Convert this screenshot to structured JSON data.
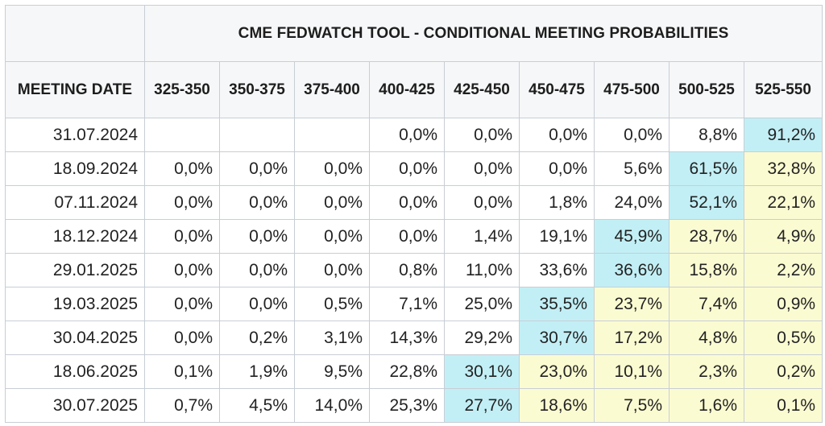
{
  "table": {
    "title": "CME FEDWATCH TOOL - CONDITIONAL MEETING PROBABILITIES",
    "date_header": "MEETING DATE",
    "colors": {
      "highlight": "#c2eff5",
      "warm": "#fbfbd2",
      "header_bg": "#f6f7f8",
      "border": "#c8ced6"
    },
    "columns": [
      "325-350",
      "350-375",
      "375-400",
      "400-425",
      "425-450",
      "450-475",
      "475-500",
      "500-525",
      "525-550"
    ],
    "rows": [
      {
        "date": "31.07.2024",
        "values": [
          "",
          "",
          "",
          "0,0%",
          "0,0%",
          "0,0%",
          "0,0%",
          "8,8%",
          "91,2%"
        ],
        "styles": [
          "",
          "",
          "",
          "",
          "",
          "",
          "",
          "",
          "hl"
        ]
      },
      {
        "date": "18.09.2024",
        "values": [
          "0,0%",
          "0,0%",
          "0,0%",
          "0,0%",
          "0,0%",
          "0,0%",
          "5,6%",
          "61,5%",
          "32,8%"
        ],
        "styles": [
          "",
          "",
          "",
          "",
          "",
          "",
          "",
          "hl",
          "warm"
        ]
      },
      {
        "date": "07.11.2024",
        "values": [
          "0,0%",
          "0,0%",
          "0,0%",
          "0,0%",
          "0,0%",
          "1,8%",
          "24,0%",
          "52,1%",
          "22,1%"
        ],
        "styles": [
          "",
          "",
          "",
          "",
          "",
          "",
          "",
          "hl",
          "warm"
        ]
      },
      {
        "date": "18.12.2024",
        "values": [
          "0,0%",
          "0,0%",
          "0,0%",
          "0,0%",
          "1,4%",
          "19,1%",
          "45,9%",
          "28,7%",
          "4,9%"
        ],
        "styles": [
          "",
          "",
          "",
          "",
          "",
          "",
          "hl",
          "warm",
          "warm"
        ]
      },
      {
        "date": "29.01.2025",
        "values": [
          "0,0%",
          "0,0%",
          "0,0%",
          "0,8%",
          "11,0%",
          "33,6%",
          "36,6%",
          "15,8%",
          "2,2%"
        ],
        "styles": [
          "",
          "",
          "",
          "",
          "",
          "",
          "hl",
          "warm",
          "warm"
        ]
      },
      {
        "date": "19.03.2025",
        "values": [
          "0,0%",
          "0,0%",
          "0,5%",
          "7,1%",
          "25,0%",
          "35,5%",
          "23,7%",
          "7,4%",
          "0,9%"
        ],
        "styles": [
          "",
          "",
          "",
          "",
          "",
          "hl",
          "warm",
          "warm",
          "warm"
        ]
      },
      {
        "date": "30.04.2025",
        "values": [
          "0,0%",
          "0,2%",
          "3,1%",
          "14,3%",
          "29,2%",
          "30,7%",
          "17,2%",
          "4,8%",
          "0,5%"
        ],
        "styles": [
          "",
          "",
          "",
          "",
          "",
          "hl",
          "warm",
          "warm",
          "warm"
        ]
      },
      {
        "date": "18.06.2025",
        "values": [
          "0,1%",
          "1,9%",
          "9,5%",
          "22,8%",
          "30,1%",
          "23,0%",
          "10,1%",
          "2,3%",
          "0,2%"
        ],
        "styles": [
          "",
          "",
          "",
          "",
          "hl",
          "warm",
          "warm",
          "warm",
          "warm"
        ]
      },
      {
        "date": "30.07.2025",
        "values": [
          "0,7%",
          "4,5%",
          "14,0%",
          "25,3%",
          "27,7%",
          "18,6%",
          "7,5%",
          "1,6%",
          "0,1%"
        ],
        "styles": [
          "",
          "",
          "",
          "",
          "hl",
          "warm",
          "warm",
          "warm",
          "warm"
        ]
      }
    ]
  }
}
